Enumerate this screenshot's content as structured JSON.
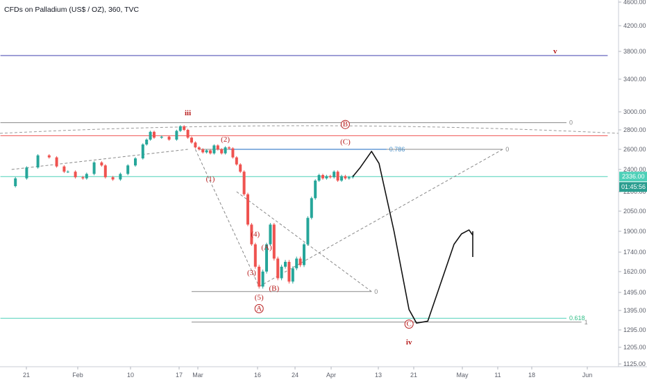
{
  "title": "CFDs on Palladium (US$ / OZ), 360, TVC",
  "colors": {
    "up": "#26a69a",
    "down": "#ef5350",
    "wave": "#b71c1c",
    "blue": "#1565c0",
    "navy": "#3f3fae",
    "teal": "#4dd0b8",
    "gray": "#888888",
    "fib_label": "#4a90c8",
    "green_label": "#2ebd85"
  },
  "chart_data": {
    "type": "candlestick",
    "title": "CFDs on Palladium (US$ / OZ), 360, TVC",
    "ylim": [
      1125,
      4600
    ],
    "y_ticks": [
      "4600.00",
      "4200.00",
      "3800.00",
      "3400.00",
      "3000.00",
      "2800.00",
      "2600.00",
      "2400.00",
      "2200.00",
      "2050.00",
      "1900.00",
      "1740.00",
      "1620.00",
      "1495.00",
      "1395.00",
      "1295.00",
      "1205.00",
      "1125.00"
    ],
    "x_ticks": [
      "21",
      "Feb",
      "10",
      "17",
      "Mar",
      "16",
      "24",
      "Apr",
      "13",
      "21",
      "May",
      "11",
      "18",
      "Jun"
    ],
    "last_price": "2336.00",
    "countdown": "01:45:56",
    "price_path": [
      [
        0,
        2250
      ],
      [
        3,
        2320
      ],
      [
        6,
        2420
      ],
      [
        9,
        2540
      ],
      [
        12,
        2520
      ],
      [
        14,
        2430
      ],
      [
        16,
        2380
      ],
      [
        17,
        2380
      ],
      [
        19,
        2330
      ],
      [
        21,
        2320
      ],
      [
        22,
        2360
      ],
      [
        24,
        2470
      ],
      [
        26,
        2440
      ],
      [
        27,
        2330
      ],
      [
        29,
        2310
      ],
      [
        31,
        2360
      ],
      [
        33,
        2440
      ],
      [
        35,
        2510
      ],
      [
        37,
        2650
      ],
      [
        38,
        2700
      ],
      [
        39,
        2780
      ],
      [
        40,
        2720
      ],
      [
        42,
        2730
      ],
      [
        44,
        2700
      ],
      [
        46,
        2790
      ],
      [
        47,
        2840
      ],
      [
        48,
        2800
      ],
      [
        49,
        2720
      ],
      [
        50,
        2670
      ],
      [
        51,
        2620
      ],
      [
        52,
        2600
      ],
      [
        53,
        2570
      ],
      [
        54,
        2590
      ],
      [
        55,
        2560
      ],
      [
        56,
        2640
      ],
      [
        57,
        2600
      ],
      [
        58,
        2560
      ],
      [
        59,
        2620
      ],
      [
        60,
        2610
      ],
      [
        61,
        2520
      ],
      [
        62,
        2450
      ],
      [
        63,
        2380
      ],
      [
        64,
        2180
      ],
      [
        65,
        1950
      ],
      [
        66,
        1800
      ],
      [
        67,
        1650
      ],
      [
        68,
        1530
      ],
      [
        69,
        1620
      ],
      [
        70,
        1800
      ],
      [
        71,
        1950
      ],
      [
        72,
        1700
      ],
      [
        73,
        1580
      ],
      [
        74,
        1650
      ],
      [
        75,
        1680
      ],
      [
        76,
        1560
      ],
      [
        77,
        1640
      ],
      [
        78,
        1700
      ],
      [
        79,
        1660
      ],
      [
        80,
        1800
      ],
      [
        81,
        2000
      ],
      [
        82,
        2150
      ],
      [
        83,
        2300
      ],
      [
        84,
        2350
      ],
      [
        85,
        2320
      ],
      [
        86,
        2340
      ],
      [
        87,
        2330
      ],
      [
        88,
        2380
      ],
      [
        89,
        2300
      ],
      [
        90,
        2340
      ],
      [
        91,
        2320
      ],
      [
        92,
        2330
      ],
      [
        93,
        2336
      ]
    ],
    "projection": [
      [
        93,
        2336
      ],
      [
        95,
        2420
      ],
      [
        98,
        2580
      ],
      [
        100,
        2460
      ],
      [
        104,
        1900
      ],
      [
        108,
        1400
      ],
      [
        110,
        1330
      ],
      [
        113,
        1340
      ],
      [
        116,
        1520
      ],
      [
        120,
        1800
      ],
      [
        122,
        1880
      ],
      [
        124,
        1910
      ],
      [
        125,
        1870
      ]
    ],
    "projection_tail": [
      [
        125,
        1900
      ],
      [
        125,
        1710
      ]
    ],
    "horizontal_lines": [
      {
        "price": 3740,
        "x1": -1,
        "x2": 161,
        "color": "navy",
        "label": ""
      },
      {
        "price": 2740,
        "x1": -1,
        "x2": 161,
        "color": "down",
        "label": ""
      },
      {
        "price": 2880,
        "x1": -1,
        "x2": 150,
        "color": "gray",
        "label": "0"
      },
      {
        "price": 2600,
        "x1": 52,
        "x2": 133,
        "color": "gray",
        "label": "0"
      },
      {
        "price": 2600,
        "x1": 60,
        "x2": 102,
        "color": "blue",
        "label": "0.786"
      },
      {
        "price": 2336,
        "x1": -1,
        "x2": 161,
        "color": "teal",
        "label": ""
      },
      {
        "price": 1500,
        "x1": 50,
        "x2": 98,
        "color": "gray",
        "label": "0"
      },
      {
        "price": 1355,
        "x1": -1,
        "x2": 150,
        "color": "teal",
        "label": "0.618"
      },
      {
        "price": 1335,
        "x1": 50,
        "x2": 154,
        "color": "gray",
        "label": "1"
      }
    ],
    "trend_lines": [
      {
        "from": [
          51,
          2600
        ],
        "to": [
          68,
          1530
        ],
        "color": "gray"
      },
      {
        "from": [
          68,
          1530
        ],
        "to": [
          133,
          2600
        ],
        "color": "gray"
      },
      {
        "from": [
          62,
          2200
        ],
        "to": [
          98,
          1500
        ],
        "color": "gray"
      },
      {
        "from": [
          2,
          2400
        ],
        "to": [
          49,
          2600
        ],
        "color": "gray"
      }
    ],
    "wave_labels": [
      {
        "text": "iii",
        "x": 49,
        "price": 2960,
        "style": "roman"
      },
      {
        "text": "(1)",
        "x": 55,
        "price": 2295,
        "style": "paren"
      },
      {
        "text": "(2)",
        "x": 59,
        "price": 2680,
        "style": "paren"
      },
      {
        "text": "(3)",
        "x": 66,
        "price": 1600,
        "style": "paren"
      },
      {
        "text": "(4)",
        "x": 67,
        "price": 1860,
        "style": "paren"
      },
      {
        "text": "(5)",
        "x": 68,
        "price": 1455,
        "style": "paren"
      },
      {
        "text": "(A)",
        "x": 70,
        "price": 1760,
        "style": "paren"
      },
      {
        "text": "(B)",
        "x": 72,
        "price": 1505,
        "style": "paren"
      },
      {
        "text": "(C)",
        "x": 91,
        "price": 2655,
        "style": "paren"
      },
      {
        "text": "iv",
        "x": 108,
        "price": 1220,
        "style": "roman"
      },
      {
        "text": "v",
        "x": 147,
        "price": 3770,
        "style": "roman"
      }
    ],
    "circle_labels": [
      {
        "text": "A",
        "x": 68,
        "price": 1405
      },
      {
        "text": "B",
        "x": 91,
        "price": 2860
      },
      {
        "text": "C",
        "x": 108,
        "price": 1325
      }
    ]
  }
}
